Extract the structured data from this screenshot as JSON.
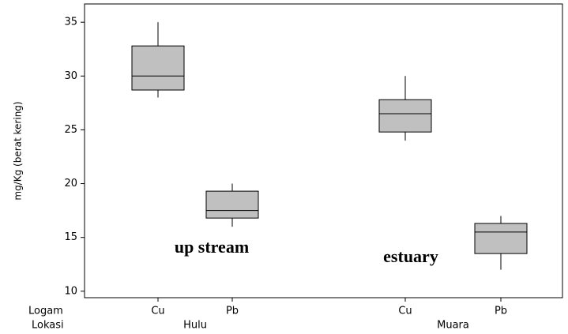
{
  "chart_data": {
    "type": "box",
    "y_label": "mg/Kg (berat kering)",
    "x_row_labels": [
      "Logam",
      "Lokasi"
    ],
    "categories": [
      "Cu",
      "Pb",
      "Cu",
      "Pb"
    ],
    "groups": [
      "Hulu",
      "Muara"
    ],
    "group_of_category": [
      0,
      0,
      1,
      1
    ],
    "min": [
      28,
      16,
      24,
      12
    ],
    "q1": [
      28.7,
      16.8,
      24.8,
      13.5
    ],
    "median": [
      30,
      17.5,
      26.5,
      15.5
    ],
    "q3": [
      32.8,
      19.3,
      27.8,
      16.3
    ],
    "max": [
      35,
      20,
      30,
      17
    ],
    "color": "#c0c0c0",
    "ylim": [
      9.4,
      36.7
    ],
    "yticks": [
      10,
      15,
      20,
      25,
      30,
      35
    ],
    "annotations": [
      "up stream",
      "estuary"
    ]
  }
}
